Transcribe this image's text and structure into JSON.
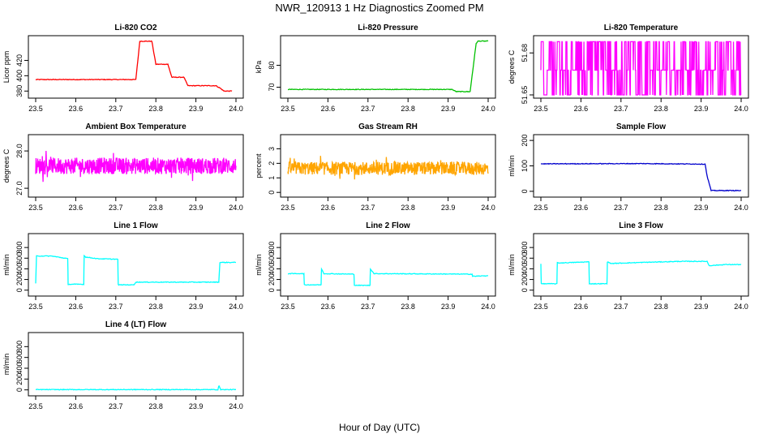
{
  "figure": {
    "title": "NWR_120913  1 Hz Diagnostics Zoomed PM",
    "xlabel": "Hour of Day (UTC)"
  },
  "chart_data": [
    {
      "type": "line",
      "title": "Li-820 CO2",
      "ylabel": "Licor ppm",
      "color": "#ff0000",
      "xlim": [
        23.5,
        24.0
      ],
      "ylim": [
        375,
        448
      ],
      "xticks": [
        "23.5",
        "23.6",
        "23.7",
        "23.8",
        "23.9",
        "24.0"
      ],
      "yticks": [
        {
          "v": 380,
          "label": "380"
        },
        {
          "v": 400,
          "label": "400"
        },
        {
          "v": 420,
          "label": "420"
        }
      ],
      "series": [
        {
          "x": [
            23.5,
            23.75,
            23.76,
            23.79,
            23.8,
            23.83,
            23.84,
            23.87,
            23.88,
            23.95,
            23.96,
            23.97,
            23.99
          ],
          "y": [
            395,
            395,
            445,
            445,
            415,
            415,
            398,
            398,
            387,
            387,
            384,
            380,
            380
          ]
        }
      ]
    },
    {
      "type": "line",
      "title": "Li-820 Pressure",
      "ylabel": "kPa",
      "color": "#00c000",
      "xlim": [
        23.5,
        24.0
      ],
      "ylim": [
        66.5,
        92
      ],
      "xticks": [
        "23.5",
        "23.6",
        "23.7",
        "23.8",
        "23.9",
        "24.0"
      ],
      "yticks": [
        {
          "v": 70,
          "label": "70"
        },
        {
          "v": 80,
          "label": "80"
        }
      ],
      "series": [
        {
          "x": [
            23.5,
            23.91,
            23.92,
            23.955,
            23.97,
            23.975,
            24.0
          ],
          "y": [
            69,
            69,
            68,
            68,
            90,
            91,
            91
          ]
        }
      ]
    },
    {
      "type": "line",
      "title": "Li-820 Temperature",
      "ylabel": "degrees C",
      "color": "#ff00ff",
      "xlim": [
        23.5,
        24.0
      ],
      "ylim": [
        51.65,
        51.69
      ],
      "xticks": [
        "23.5",
        "23.6",
        "23.7",
        "23.8",
        "23.9",
        "24.0"
      ],
      "yticks": [
        {
          "v": 51.65,
          "label": "51.65"
        },
        {
          "v": 51.68,
          "label": "51.68"
        }
      ],
      "series": [
        {
          "levels": [
            51.65,
            51.6677,
            51.688
          ],
          "pattern": "digitized toggling between 3 levels",
          "x": [
            23.5,
            24.0
          ]
        }
      ]
    },
    {
      "type": "line",
      "title": "Ambient Box Temperature",
      "ylabel": "degrees C",
      "color": "#ff00ff",
      "xlim": [
        23.5,
        24.0
      ],
      "ylim": [
        26.85,
        28.35
      ],
      "xticks": [
        "23.5",
        "23.6",
        "23.7",
        "23.8",
        "23.9",
        "24.0"
      ],
      "yticks": [
        {
          "v": 27.0,
          "label": "27.0"
        },
        {
          "v": 28.0,
          "label": "28.0"
        }
      ],
      "series": [
        {
          "x": [
            23.5,
            24.0
          ],
          "mean": 27.6,
          "noise": 0.22
        }
      ]
    },
    {
      "type": "line",
      "title": "Gas Stream RH",
      "ylabel": "percent",
      "color": "#ffa500",
      "xlim": [
        23.5,
        24.0
      ],
      "ylim": [
        -0.1,
        3.75
      ],
      "xticks": [
        "23.5",
        "23.6",
        "23.7",
        "23.8",
        "23.9",
        "24.0"
      ],
      "yticks": [
        {
          "v": 0,
          "label": "0"
        },
        {
          "v": 1,
          "label": "1"
        },
        {
          "v": 2,
          "label": "2"
        },
        {
          "v": 3,
          "label": "3"
        }
      ],
      "series": [
        {
          "x": [
            23.5,
            24.0
          ],
          "mean": 1.65,
          "noise": 0.45
        }
      ]
    },
    {
      "type": "line",
      "title": "Sample Flow",
      "ylabel": "ml/min",
      "color": "#0000cc",
      "xlim": [
        23.5,
        24.0
      ],
      "ylim": [
        -10,
        210
      ],
      "xticks": [
        "23.5",
        "23.6",
        "23.7",
        "23.8",
        "23.9",
        "24.0"
      ],
      "yticks": [
        {
          "v": 0,
          "label": "0"
        },
        {
          "v": 100,
          "label": "100"
        },
        {
          "v": 200,
          "label": "200"
        }
      ],
      "series": [
        {
          "x": [
            23.5,
            23.75,
            23.91,
            23.915,
            23.925,
            24.0
          ],
          "y": [
            108,
            109,
            107,
            60,
            3,
            3
          ]
        }
      ]
    },
    {
      "type": "line",
      "title": "Line 1 Flow",
      "ylabel": "ml/min",
      "color": "#00ffff",
      "xlim": [
        23.5,
        24.0
      ],
      "ylim": [
        -50,
        1000
      ],
      "xticks": [
        "23.5",
        "23.6",
        "23.7",
        "23.8",
        "23.9",
        "24.0"
      ],
      "yticks": [
        {
          "v": 0,
          "label": "0"
        },
        {
          "v": 200,
          "label": "200"
        },
        {
          "v": 400,
          "label": "400"
        },
        {
          "v": 600,
          "label": "600"
        },
        {
          "v": 800,
          "label": "800"
        }
      ],
      "series": [
        {
          "x": [
            23.5,
            23.502,
            23.54,
            23.58,
            23.581,
            23.62,
            23.621,
            23.625,
            23.655,
            23.705,
            23.706,
            23.745,
            23.75,
            23.957,
            23.96,
            24.0
          ],
          "y": [
            120,
            640,
            640,
            590,
            110,
            110,
            650,
            620,
            590,
            580,
            100,
            100,
            150,
            150,
            520,
            520
          ]
        }
      ]
    },
    {
      "type": "line",
      "title": "Line 2 Flow",
      "ylabel": "ml/min",
      "color": "#00ffff",
      "xlim": [
        23.5,
        24.0
      ],
      "ylim": [
        -50,
        1000
      ],
      "xticks": [
        "23.5",
        "23.6",
        "23.7",
        "23.8",
        "23.9",
        "24.0"
      ],
      "yticks": [
        {
          "v": 0,
          "label": "0"
        },
        {
          "v": 200,
          "label": "200"
        },
        {
          "v": 400,
          "label": "400"
        },
        {
          "v": 600,
          "label": "600"
        },
        {
          "v": 800,
          "label": "800"
        }
      ],
      "series": [
        {
          "x": [
            23.5,
            23.54,
            23.541,
            23.583,
            23.584,
            23.59,
            23.665,
            23.666,
            23.705,
            23.706,
            23.715,
            23.96,
            23.961,
            24.0
          ],
          "y": [
            310,
            310,
            100,
            100,
            400,
            310,
            300,
            90,
            90,
            400,
            310,
            300,
            260,
            270
          ]
        }
      ]
    },
    {
      "type": "line",
      "title": "Line 3 Flow",
      "ylabel": "ml/min",
      "color": "#00ffff",
      "xlim": [
        23.5,
        24.0
      ],
      "ylim": [
        -50,
        1000
      ],
      "xticks": [
        "23.5",
        "23.6",
        "23.7",
        "23.8",
        "23.9",
        "24.0"
      ],
      "yticks": [
        {
          "v": 0,
          "label": "0"
        },
        {
          "v": 200,
          "label": "200"
        },
        {
          "v": 400,
          "label": "400"
        },
        {
          "v": 600,
          "label": "600"
        },
        {
          "v": 800,
          "label": "800"
        }
      ],
      "series": [
        {
          "x": [
            23.5,
            23.501,
            23.503,
            23.54,
            23.541,
            23.545,
            23.62,
            23.621,
            23.665,
            23.666,
            23.675,
            23.75,
            23.85,
            23.915,
            23.92,
            23.96,
            24.0
          ],
          "y": [
            500,
            120,
            120,
            120,
            520,
            510,
            530,
            120,
            120,
            530,
            500,
            520,
            540,
            540,
            460,
            480,
            480
          ]
        }
      ]
    },
    {
      "type": "line",
      "title": "Line 4 (LT) Flow",
      "ylabel": "ml/min",
      "color": "#00ffff",
      "xlim": [
        23.5,
        24.0
      ],
      "ylim": [
        -50,
        1000
      ],
      "xticks": [
        "23.5",
        "23.6",
        "23.7",
        "23.8",
        "23.9",
        "24.0"
      ],
      "yticks": [
        {
          "v": 0,
          "label": "0"
        },
        {
          "v": 200,
          "label": "200"
        },
        {
          "v": 400,
          "label": "400"
        },
        {
          "v": 600,
          "label": "600"
        },
        {
          "v": 800,
          "label": "800"
        }
      ],
      "series": [
        {
          "x": [
            23.5,
            23.955,
            23.957,
            23.959,
            23.962,
            24.0
          ],
          "y": [
            5,
            5,
            70,
            60,
            5,
            5
          ]
        }
      ]
    }
  ]
}
